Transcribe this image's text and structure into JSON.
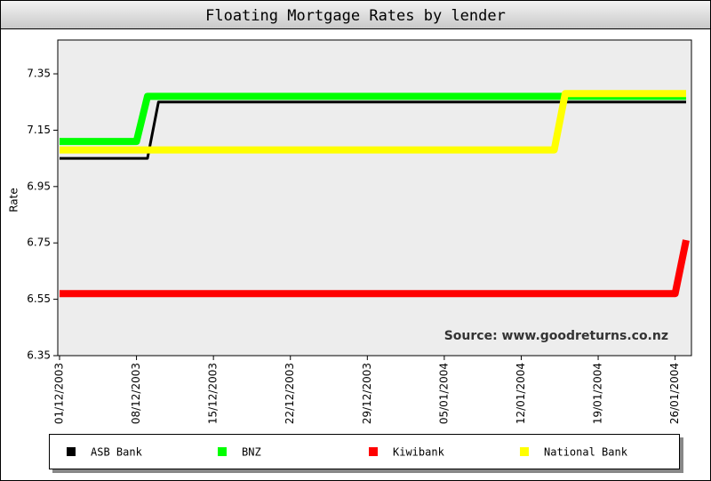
{
  "chart_data": {
    "type": "line",
    "title": "Floating Mortgage Rates by lender",
    "y_label": "Rate",
    "annotation": "Source: www.goodreturns.co.nz",
    "xlim": [
      "2003-12-01",
      "2004-01-27"
    ],
    "xticks": [
      {
        "value": "2003-12-01",
        "label": "01/12/2003"
      },
      {
        "value": "2003-12-08",
        "label": "08/12/2003"
      },
      {
        "value": "2003-12-15",
        "label": "15/12/2003"
      },
      {
        "value": "2003-12-22",
        "label": "22/12/2003"
      },
      {
        "value": "2003-12-29",
        "label": "29/12/2003"
      },
      {
        "value": "2004-01-05",
        "label": "05/01/2004"
      },
      {
        "value": "2004-01-12",
        "label": "12/01/2004"
      },
      {
        "value": "2004-01-19",
        "label": "19/01/2004"
      },
      {
        "value": "2004-01-26",
        "label": "26/01/2004"
      }
    ],
    "ylim": [
      6.35,
      7.47
    ],
    "yticks": [
      6.35,
      6.55,
      6.75,
      6.95,
      7.15,
      7.35
    ],
    "grid": false,
    "series": [
      {
        "name": "ASB Bank",
        "color": "#000000",
        "x": [
          "2003-12-01",
          "2003-12-09",
          "2003-12-10",
          "2004-01-27"
        ],
        "values": [
          7.05,
          7.05,
          7.25,
          7.25
        ]
      },
      {
        "name": "BNZ",
        "color": "#00ff00",
        "x": [
          "2003-12-01",
          "2003-12-08",
          "2003-12-09",
          "2004-01-27"
        ],
        "values": [
          7.11,
          7.11,
          7.27,
          7.27
        ]
      },
      {
        "name": "Kiwibank",
        "color": "#ff0000",
        "x": [
          "2003-12-01",
          "2004-01-26",
          "2004-01-27"
        ],
        "values": [
          6.57,
          6.57,
          6.76
        ]
      },
      {
        "name": "National Bank",
        "color": "#ffff00",
        "x": [
          "2003-12-01",
          "2004-01-15",
          "2004-01-16",
          "2004-01-27"
        ],
        "values": [
          7.08,
          7.08,
          7.28,
          7.28
        ]
      }
    ]
  }
}
